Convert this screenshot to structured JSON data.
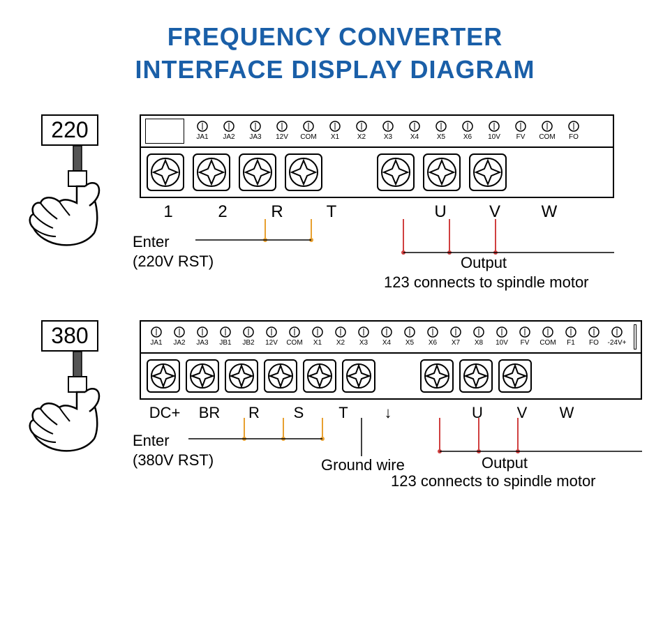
{
  "title": {
    "line1": "FREQUENCY CONVERTER",
    "line2": "INTERFACE DISPLAY DIAGRAM",
    "color": "#1a5fa8",
    "fontsize": 36
  },
  "sections": [
    {
      "voltage": "220",
      "small_terminals": [
        "JA1",
        "JA2",
        "JA3",
        "12V",
        "COM",
        "X1",
        "X2",
        "X3",
        "X4",
        "X5",
        "X6",
        "10V",
        "FV",
        "COM",
        "FO"
      ],
      "big_labels": [
        "1",
        "2",
        "R",
        "T",
        "",
        "U",
        "V",
        "W"
      ],
      "enter_label": "Enter",
      "enter_sub": "(220V RST)",
      "output_label": "Output",
      "output_sub": "123 connects to spindle motor",
      "wire_color_input": "#e8a030",
      "wire_color_output": "#d04040",
      "wire_color_line": "#000000"
    },
    {
      "voltage": "380",
      "small_terminals": [
        "JA1",
        "JA2",
        "JA3",
        "JB1",
        "JB2",
        "12V",
        "COM",
        "X1",
        "X2",
        "X3",
        "X4",
        "X5",
        "X6",
        "X7",
        "X8",
        "10V",
        "FV",
        "COM",
        "F1",
        "FO",
        "-24V+"
      ],
      "big_labels": [
        "DC+",
        "BR",
        "R",
        "S",
        "T",
        "↓",
        "",
        "U",
        "V",
        "W"
      ],
      "enter_label": "Enter",
      "enter_sub": "(380V RST)",
      "ground_label": "Ground wire",
      "output_label": "Output",
      "output_sub": "123 connects to spindle motor",
      "wire_color_input": "#e8a030",
      "wire_color_output": "#d04040",
      "wire_color_line": "#000000"
    }
  ],
  "colors": {
    "background": "#ffffff",
    "stroke": "#000000",
    "title": "#1a5fa8"
  }
}
